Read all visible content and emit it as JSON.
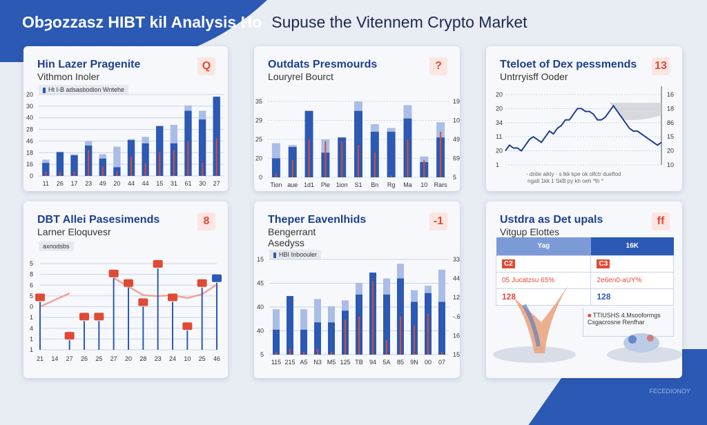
{
  "header": {
    "title_left": "Obȝozzasz HIBT kil Analysis Ho",
    "title_right": "Supuse the Vitennem Crypto Market"
  },
  "colors": {
    "primary": "#2b59b3",
    "accent": "#e04a35",
    "light_bar": "#a9bde6",
    "background": "#e8ecf3"
  },
  "cards": [
    {
      "title": "Hin Lazer Pragenite",
      "subtitle": "Vithmon Inoler",
      "badge": "Q",
      "legend": "Ht I-B adsasbodion Wntehe"
    },
    {
      "title": "Outdats Presmourds",
      "subtitle": "Louryrel Bourct",
      "badge": "?"
    },
    {
      "title": "Tteloet of Dex pessmends",
      "subtitle": "Untrryisff Ooder",
      "badge": "13"
    },
    {
      "title": "DBT Allei Pasesimends",
      "subtitle": "Larner Eloquvesr",
      "badge": "8",
      "legend": "axnodsbs"
    },
    {
      "title": "Theper Eavenlhids",
      "subtitle": "Bengerrant",
      "subtitle2": "Asedyss",
      "badge": "-1",
      "legend": "HBI Inboouler"
    },
    {
      "title": "Ustdra as Det upals",
      "subtitle": "Vitgup Elottes",
      "badge": "ff"
    }
  ],
  "table": {
    "headers": [
      "Yag",
      "16K"
    ],
    "rows": [
      [
        "C2",
        "C3"
      ],
      [
        "05 Jucatzsu 65%",
        "2e6en0-aUY%"
      ],
      [
        "128",
        "128"
      ]
    ],
    "note": "TTIUSHS 4.Msooformgs Csgacrosne Renfhar"
  },
  "footer": {
    "brand": "FECEDIONOY"
  },
  "chart_data": [
    {
      "type": "bar",
      "title": "Hin Lazer Pragenite",
      "subtitle": "Vithmon Inoler",
      "categories": [
        "11",
        "26",
        "17",
        "23",
        "49",
        "20",
        "44",
        "44",
        "15",
        "31",
        "61",
        "30",
        "27"
      ],
      "yticks": [
        "0",
        "16",
        "18",
        "46",
        "28",
        "40",
        "30",
        "20"
      ],
      "series": [
        {
          "name": "total",
          "values": [
            15,
            22,
            20,
            32,
            20,
            27,
            34,
            36,
            46,
            47,
            65,
            60,
            73
          ]
        },
        {
          "name": "filled",
          "values": [
            12,
            22,
            19,
            28,
            16,
            8,
            33,
            30,
            46,
            30,
            60,
            52,
            73
          ]
        },
        {
          "name": "marker",
          "values": [
            4,
            4,
            4,
            24,
            9,
            4,
            18,
            12,
            22,
            24,
            32,
            12,
            35
          ]
        }
      ],
      "grid": true
    },
    {
      "type": "bar",
      "title": "Outdats Presmourds",
      "subtitle": "Louryrel Bourct",
      "categories": [
        "Tion",
        "aue",
        "1d1",
        "Ple",
        "1ion",
        "S1",
        "Bn",
        "Rg",
        "Ma",
        "10",
        "Rars"
      ],
      "yticks_left": [
        "0",
        "20",
        "25",
        "29",
        "35"
      ],
      "yticks_right": [
        "5",
        "69",
        "49",
        "10",
        "19"
      ],
      "series": [
        {
          "name": "total",
          "values": [
            18,
            17,
            35,
            20,
            21,
            40,
            28,
            26,
            38,
            11,
            29
          ]
        },
        {
          "name": "filled",
          "values": [
            10,
            16,
            35,
            13,
            21,
            35,
            24,
            24,
            31,
            8,
            21
          ]
        },
        {
          "name": "marker",
          "values": [
            2,
            9,
            20,
            19,
            19,
            17,
            13,
            1,
            20,
            9,
            24
          ]
        }
      ],
      "grid": true
    },
    {
      "type": "line",
      "title": "Tteloet of Dex pessmends",
      "subtitle": "Untrryisff Ooder",
      "yticks_left": [
        "1",
        "20",
        "11",
        "34",
        "20",
        "20"
      ],
      "yticks_right": [
        "10",
        "20",
        "15",
        "86",
        "18",
        "16"
      ],
      "x": [
        0,
        1,
        2,
        3,
        4,
        5,
        6,
        7,
        8,
        9,
        10,
        11,
        12,
        13,
        14,
        15,
        16,
        17,
        18,
        19,
        20,
        21,
        22,
        23,
        24,
        25,
        26,
        27,
        28,
        29,
        30,
        31,
        32,
        33,
        34,
        35,
        36,
        37,
        38,
        39
      ],
      "values": [
        20,
        22,
        21,
        21,
        20,
        22,
        24,
        25,
        24,
        23,
        25,
        27,
        26,
        28,
        29,
        31,
        31,
        33,
        35,
        35,
        34,
        34,
        33,
        31,
        31,
        32,
        34,
        36,
        34,
        32,
        30,
        28,
        27,
        27,
        26,
        25,
        24,
        23,
        22,
        23
      ],
      "highlight_range": [
        26,
        39
      ],
      "grid": true
    },
    {
      "type": "line",
      "title": "DBT Allei Pasesimends",
      "subtitle": "Larner Eloquvesr",
      "categories": [
        "21",
        "14",
        "27",
        "26",
        "25",
        "27",
        "20",
        "28",
        "23",
        "24",
        "10",
        "25",
        "46"
      ],
      "yticks": [
        "1",
        "1",
        "4",
        "1",
        "0",
        "5",
        "6",
        "8",
        "5"
      ],
      "stems": [
        5,
        0,
        1,
        3,
        3,
        7.5,
        6.5,
        4.5,
        8.5,
        5,
        2,
        6.5,
        7
      ],
      "trend": [
        4.5,
        5.2,
        5.9,
        null,
        null,
        7.5,
        6.6,
        5.7,
        5.6,
        5.7,
        5.4,
        5.8,
        6.8
      ],
      "grid": true
    },
    {
      "type": "bar",
      "title": "Theper Eavenlhids",
      "subtitle": "Bengerrant Asedyss",
      "categories": [
        "115",
        "215",
        "A5",
        "N3",
        "M5",
        "125",
        "TB",
        "94",
        "5A",
        "85",
        "9N",
        "00",
        "07"
      ],
      "yticks_left": [
        "5",
        "40",
        "40",
        "45",
        "15"
      ],
      "yticks_right": [
        "15",
        "16",
        "-.60",
        "12",
        "44",
        "33"
      ],
      "series": [
        {
          "name": "total",
          "values": [
            31,
            40,
            31,
            38,
            33,
            37,
            49,
            56,
            52,
            62,
            44,
            47,
            58
          ]
        },
        {
          "name": "filled",
          "values": [
            17,
            40,
            17,
            22,
            22,
            30,
            41,
            56,
            41,
            52,
            36,
            42,
            36
          ]
        },
        {
          "name": "marker",
          "values": [
            2,
            4,
            2,
            4,
            2,
            24,
            26,
            50,
            10,
            26,
            20,
            28,
            2
          ]
        }
      ],
      "grid": true
    }
  ]
}
